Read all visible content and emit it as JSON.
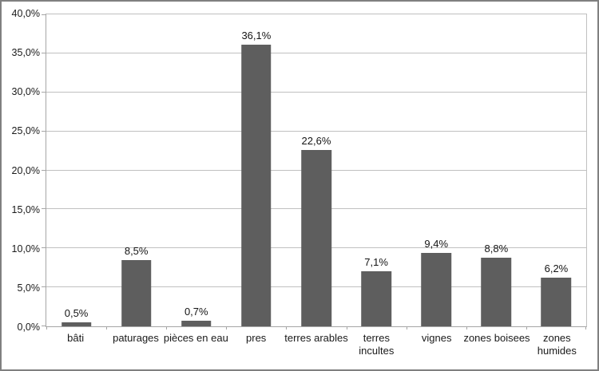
{
  "chart_data": {
    "type": "bar",
    "title": "",
    "xlabel": "",
    "ylabel": "",
    "categories": [
      "bâti",
      "paturages",
      "pièces en eau",
      "pres",
      "terres arables",
      "terres incultes",
      "vignes",
      "zones boisees",
      "zones humides"
    ],
    "category_display": [
      "bâti",
      "paturages",
      "pièces en eau",
      "pres",
      "terres arables",
      "terres\nincultes",
      "vignes",
      "zones boisees",
      "zones\nhumides"
    ],
    "values": [
      0.5,
      8.5,
      0.7,
      36.1,
      22.6,
      7.1,
      9.4,
      8.8,
      6.2
    ],
    "data_labels": [
      "0,5%",
      "8,5%",
      "0,7%",
      "36,1%",
      "22,6%",
      "7,1%",
      "9,4%",
      "8,8%",
      "6,2%"
    ],
    "y_ticks": [
      "0,0%",
      "5,0%",
      "10,0%",
      "15,0%",
      "20,0%",
      "25,0%",
      "30,0%",
      "35,0%",
      "40,0%"
    ],
    "y_tick_values": [
      0,
      5,
      10,
      15,
      20,
      25,
      30,
      35,
      40
    ],
    "ylim": [
      0,
      40
    ],
    "grid": true,
    "legend": "none",
    "colors": {
      "bar": "#5e5e5e",
      "gridline": "#c0c0c0",
      "axis": "#a6a6a6",
      "text": "#1a1a1a",
      "outer_border": "#808080",
      "background": "#ffffff"
    }
  }
}
